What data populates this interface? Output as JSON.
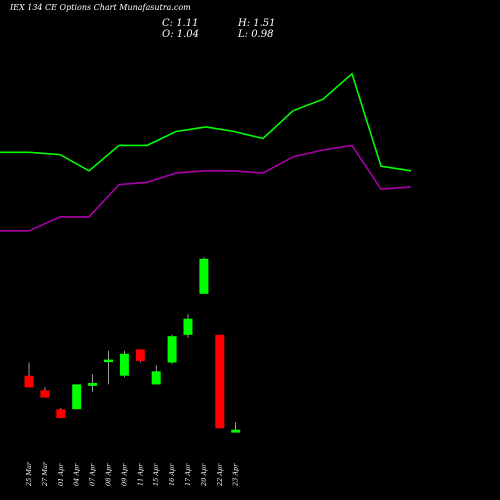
{
  "chart_data": {
    "type": "candlestick",
    "title": "IEX 134 CE Options Chart Munafasutra.com",
    "ohlc_readout": {
      "c_label": "C: 1.11",
      "h_label": "H: 1.51",
      "o_label": "O: 1.04",
      "l_label": "L: 0.98"
    },
    "colors": {
      "background": "#000000",
      "up": "#00ff00",
      "down": "#ff0000",
      "upper_line": "#00ff00",
      "lower_line": "#aa00aa",
      "text": "#ffffff"
    },
    "price_range": [
      0.0,
      8.8
    ],
    "dates": [
      "25 Mar",
      "27 Mar",
      "01 Apr",
      "04 Apr",
      "07 Apr",
      "08 Apr",
      "09 Apr",
      "11 Apr",
      "15 Apr",
      "16 Apr",
      "17 Apr",
      "20 Apr",
      "22 Apr",
      "23 Apr"
    ],
    "candles": [
      {
        "open": 2.1,
        "high": 2.55,
        "low": 1.7,
        "close": 1.7,
        "show": true
      },
      {
        "open": 1.6,
        "high": 1.7,
        "low": 1.35,
        "close": 1.35,
        "show": true
      },
      {
        "open": 0.95,
        "high": 1.0,
        "low": 0.65,
        "close": 0.65,
        "show": true
      },
      {
        "open": 0.95,
        "high": 1.8,
        "low": 0.95,
        "close": 1.8,
        "show": true
      },
      {
        "open": 1.75,
        "high": 2.15,
        "low": 1.55,
        "close": 1.85,
        "show": true
      },
      {
        "open": 2.6,
        "high": 2.95,
        "low": 1.8,
        "close": 2.65,
        "show": true
      },
      {
        "open": 2.1,
        "high": 2.95,
        "low": 2.05,
        "close": 2.85,
        "show": true
      },
      {
        "open": 3.0,
        "high": 3.0,
        "low": 2.55,
        "close": 2.6,
        "show": true
      },
      {
        "open": 1.8,
        "high": 2.45,
        "low": 1.8,
        "close": 2.25,
        "show": true
      },
      {
        "open": 2.55,
        "high": 3.5,
        "low": 2.5,
        "close": 3.45,
        "show": true
      },
      {
        "open": 3.5,
        "high": 4.2,
        "low": 3.4,
        "close": 4.05,
        "show": true
      },
      {
        "open": 4.9,
        "high": 6.15,
        "low": 4.9,
        "close": 6.1,
        "show": true
      },
      {
        "open": 3.5,
        "high": 3.5,
        "low": 0.3,
        "close": 0.3,
        "show": true
      },
      {
        "open": 0.15,
        "high": 0.5,
        "low": 0.15,
        "close": 0.25,
        "show": true
      }
    ],
    "upper_line": [
      8.8,
      8.8,
      8.75,
      8.4,
      8.95,
      8.95,
      9.25,
      9.35,
      9.25,
      9.1,
      9.7,
      9.95,
      10.5,
      8.5,
      8.4
    ],
    "lower_line": [
      7.1,
      7.1,
      7.4,
      7.4,
      8.1,
      8.15,
      8.35,
      8.4,
      8.4,
      8.35,
      8.7,
      8.85,
      8.95,
      8.0,
      8.05
    ]
  }
}
